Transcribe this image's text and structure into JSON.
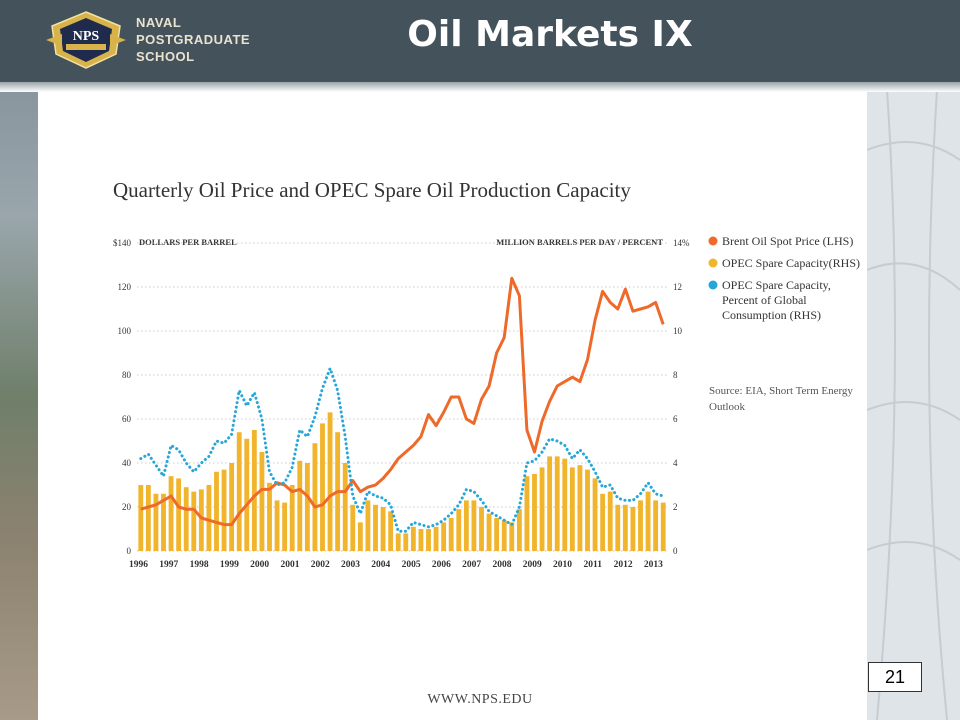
{
  "slide": {
    "title": "Oil Markets IX",
    "school_lines": [
      "NAVAL",
      "POSTGRADUATE",
      "SCHOOL"
    ],
    "logo_text": "NPS",
    "page_number": "21",
    "footer": "WWW.NPS.EDU"
  },
  "colors": {
    "header": "#44525c",
    "price": "#ee6a2a",
    "capacity": "#f0b52c",
    "percent": "#26a6d9"
  },
  "chart_data": {
    "type": "bar",
    "title": "Quarterly Oil Price and OPEC Spare Oil Production Capacity",
    "left_unit": "DOLLARS PER BARREL",
    "right_unit": "MILLION BARRELS PER DAY / PERCENT",
    "left_ticks": [
      "$140",
      "120",
      "100",
      "80",
      "60",
      "40",
      "20",
      "0"
    ],
    "right_ticks": [
      "14%",
      "12",
      "10",
      "8",
      "6",
      "4",
      "2",
      "0"
    ],
    "left_range": [
      0,
      140
    ],
    "right_range": [
      0,
      14
    ],
    "x_labels": [
      "1996",
      "1997",
      "1998",
      "1999",
      "2000",
      "2001",
      "2002",
      "2003",
      "2004",
      "2005",
      "2006",
      "2007",
      "2008",
      "2009",
      "2010",
      "2011",
      "2012",
      "2013"
    ],
    "x_range": [
      1996,
      2013.5
    ],
    "legend_placement": "right",
    "legend": [
      {
        "label_lines": [
          "Brent Oil Spot Price (LHS)"
        ],
        "color": "#ee6a2a"
      },
      {
        "label_lines": [
          "OPEC Spare Capacity(RHS)"
        ],
        "color": "#f0b52c"
      },
      {
        "label_lines": [
          "OPEC Spare Capacity,",
          "Percent of Global",
          "Consumption (RHS)"
        ],
        "color": "#26a6d9"
      }
    ],
    "source_lines": [
      "Source: EIA, Short Term Energy",
      "Outlook"
    ],
    "series": [
      {
        "name": "Brent Oil Spot Price (LHS)",
        "axis": "left",
        "type": "line",
        "x": [
          1996,
          1996.25,
          1996.5,
          1996.75,
          1997,
          1997.25,
          1997.5,
          1997.75,
          1998,
          1998.25,
          1998.5,
          1998.75,
          1999,
          1999.25,
          1999.5,
          1999.75,
          2000,
          2000.25,
          2000.5,
          2000.75,
          2001,
          2001.25,
          2001.5,
          2001.75,
          2002,
          2002.25,
          2002.5,
          2002.75,
          2003,
          2003.25,
          2003.5,
          2003.75,
          2004,
          2004.25,
          2004.5,
          2004.75,
          2005,
          2005.25,
          2005.5,
          2005.75,
          2006,
          2006.25,
          2006.5,
          2006.75,
          2007,
          2007.25,
          2007.5,
          2007.75,
          2008,
          2008.25,
          2008.5,
          2008.75,
          2009,
          2009.25,
          2009.5,
          2009.75,
          2010,
          2010.25,
          2010.5,
          2010.75,
          2011,
          2011.25,
          2011.5,
          2011.75,
          2012,
          2012.25,
          2012.5,
          2012.75,
          2013,
          2013.25
        ],
        "values": [
          19,
          20,
          21,
          23,
          25,
          20,
          19,
          19,
          15,
          14,
          13,
          12,
          12,
          17,
          21,
          25,
          28,
          28,
          31,
          30,
          27,
          28,
          25,
          20,
          21,
          25,
          27,
          27,
          32,
          27,
          29,
          30,
          33,
          37,
          42,
          45,
          48,
          52,
          62,
          57,
          63,
          70,
          70,
          60,
          58,
          69,
          75,
          90,
          97,
          124,
          116,
          55,
          45,
          59,
          68,
          75,
          77,
          79,
          77,
          87,
          105,
          118,
          113,
          110,
          119,
          109,
          110,
          111,
          113,
          103
        ]
      },
      {
        "name": "OPEC Spare Capacity(RHS)",
        "axis": "right",
        "type": "bar",
        "x": [
          1996,
          1996.25,
          1996.5,
          1996.75,
          1997,
          1997.25,
          1997.5,
          1997.75,
          1998,
          1998.25,
          1998.5,
          1998.75,
          1999,
          1999.25,
          1999.5,
          1999.75,
          2000,
          2000.25,
          2000.5,
          2000.75,
          2001,
          2001.25,
          2001.5,
          2001.75,
          2002,
          2002.25,
          2002.5,
          2002.75,
          2003,
          2003.25,
          2003.5,
          2003.75,
          2004,
          2004.25,
          2004.5,
          2004.75,
          2005,
          2005.25,
          2005.5,
          2005.75,
          2006,
          2006.25,
          2006.5,
          2006.75,
          2007,
          2007.25,
          2007.5,
          2007.75,
          2008,
          2008.25,
          2008.5,
          2008.75,
          2009,
          2009.25,
          2009.5,
          2009.75,
          2010,
          2010.25,
          2010.5,
          2010.75,
          2011,
          2011.25,
          2011.5,
          2011.75,
          2012,
          2012.25,
          2012.5,
          2012.75,
          2013,
          2013.25
        ],
        "values": [
          3,
          3,
          2.6,
          2.6,
          3.4,
          3.3,
          2.9,
          2.7,
          2.8,
          3,
          3.6,
          3.7,
          4,
          5.4,
          5.1,
          5.5,
          4.5,
          3.1,
          2.3,
          2.2,
          3,
          4.1,
          4,
          4.9,
          5.8,
          6.3,
          5.4,
          4,
          2.1,
          1.3,
          2.3,
          2.1,
          2,
          1.8,
          0.8,
          0.8,
          1.1,
          1,
          1,
          1.1,
          1.3,
          1.5,
          1.9,
          2.3,
          2.3,
          2,
          1.7,
          1.5,
          1.4,
          1.3,
          1.9,
          3.4,
          3.5,
          3.8,
          4.3,
          4.3,
          4.2,
          3.8,
          3.9,
          3.7,
          3.3,
          2.6,
          2.7,
          2.1,
          2.1,
          2,
          2.3,
          2.7,
          2.3,
          2.2
        ]
      },
      {
        "name": "OPEC Spare Capacity, Percent of Global Consumption (RHS)",
        "axis": "right",
        "type": "line",
        "style": "dotted",
        "x": [
          1996,
          1996.25,
          1996.5,
          1996.75,
          1997,
          1997.25,
          1997.5,
          1997.75,
          1998,
          1998.25,
          1998.5,
          1998.75,
          1999,
          1999.25,
          1999.5,
          1999.75,
          2000,
          2000.25,
          2000.5,
          2000.75,
          2001,
          2001.25,
          2001.5,
          2001.75,
          2002,
          2002.25,
          2002.5,
          2002.75,
          2003,
          2003.25,
          2003.5,
          2003.75,
          2004,
          2004.25,
          2004.5,
          2004.75,
          2005,
          2005.25,
          2005.5,
          2005.75,
          2006,
          2006.25,
          2006.5,
          2006.75,
          2007,
          2007.25,
          2007.5,
          2007.75,
          2008,
          2008.25,
          2008.5,
          2008.75,
          2009,
          2009.25,
          2009.5,
          2009.75,
          2010,
          2010.25,
          2010.5,
          2010.75,
          2011,
          2011.25,
          2011.5,
          2011.75,
          2012,
          2012.25,
          2012.5,
          2012.75,
          2013,
          2013.25
        ],
        "values": [
          4.2,
          4.4,
          3.9,
          3.4,
          4.8,
          4.6,
          4,
          3.6,
          4,
          4.3,
          5,
          4.9,
          5.3,
          7.3,
          6.6,
          7.2,
          6,
          3.6,
          3,
          3.1,
          3.8,
          5.5,
          5.2,
          6.1,
          7.4,
          8.3,
          7.3,
          5.2,
          2.5,
          1.7,
          2.7,
          2.5,
          2.4,
          2.1,
          0.9,
          0.9,
          1.3,
          1.2,
          1.1,
          1.2,
          1.4,
          1.7,
          2.1,
          2.8,
          2.7,
          2.3,
          1.8,
          1.6,
          1.4,
          1.2,
          2,
          4,
          4.1,
          4.5,
          5.1,
          5,
          4.8,
          4.2,
          4.6,
          4.2,
          3.6,
          2.9,
          3,
          2.4,
          2.3,
          2.3,
          2.6,
          3.1,
          2.6,
          2.5
        ]
      }
    ]
  }
}
